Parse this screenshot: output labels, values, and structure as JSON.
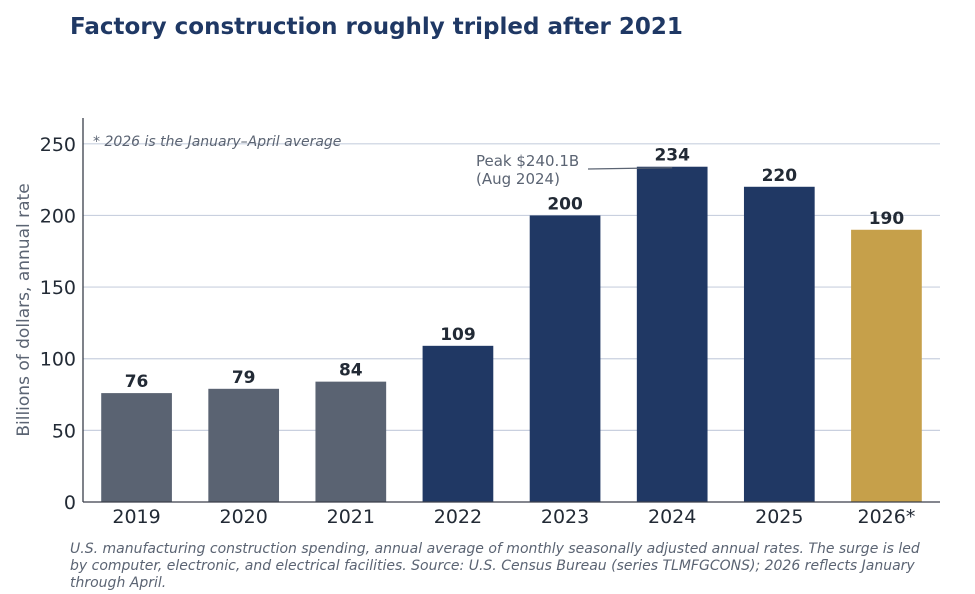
{
  "chart_data": {
    "type": "bar",
    "title": "Factory construction roughly tripled after 2021",
    "ylabel": "Billions of dollars, annual rate",
    "xlabel": "",
    "categories": [
      "2019",
      "2020",
      "2021",
      "2022",
      "2023",
      "2024",
      "2025",
      "2026*"
    ],
    "values": [
      76,
      79,
      84,
      109,
      200,
      234,
      220,
      190
    ],
    "value_labels": [
      "76",
      "79",
      "84",
      "109",
      "200",
      "234",
      "220",
      "190"
    ],
    "bar_colors": [
      "#5a6372",
      "#5a6372",
      "#5a6372",
      "#203864",
      "#203864",
      "#203864",
      "#203864",
      "#c6a04a"
    ],
    "ylim": [
      0,
      268
    ],
    "yticks": [
      0,
      50,
      100,
      150,
      200,
      250
    ],
    "grid": true,
    "note": "* 2026 is the January–April average",
    "annotation": {
      "text_line1": "Peak $240.1B",
      "text_line2": "(Aug 2024)",
      "target_category": "2024",
      "target_value": 234
    },
    "caption": "U.S. manufacturing construction spending, annual average of monthly seasonally adjusted annual rates. The surge is led by computer, electronic, and electrical facilities. Source: U.S. Census Bureau (series TLMFGCONS); 2026 reflects January through April."
  },
  "colors": {
    "title": "#1f3864",
    "text": "#222a35",
    "muted": "#5b6473",
    "grid": "#c9d0df",
    "axis": "#3a3f4a"
  }
}
